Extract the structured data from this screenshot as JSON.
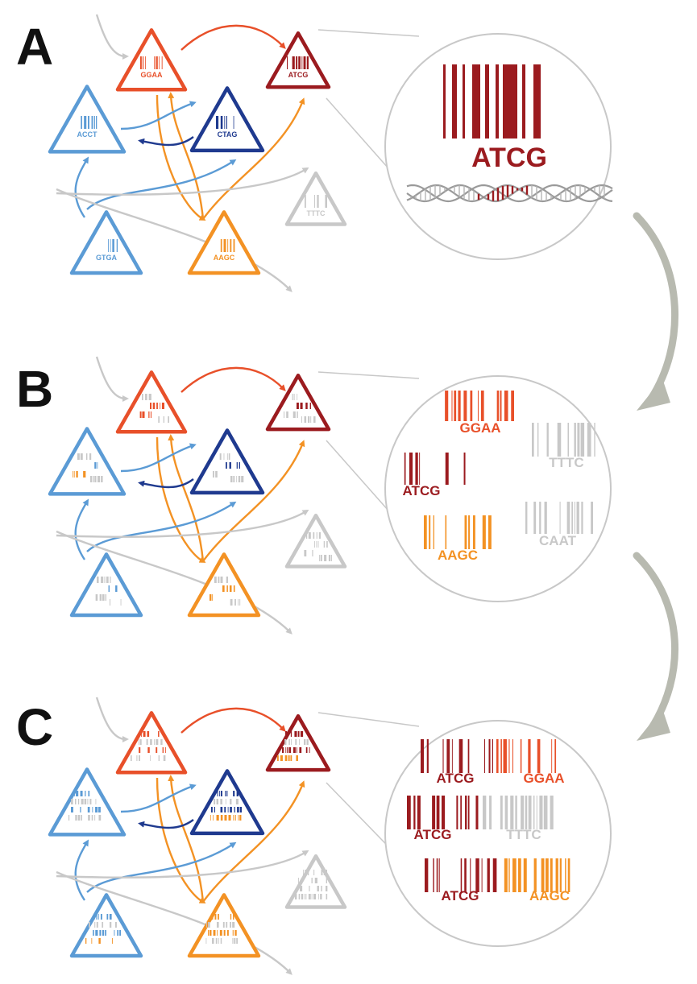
{
  "colors": {
    "red": "#e8502a",
    "darkred": "#9b1b1f",
    "blue": "#5b9bd5",
    "navy": "#1f3a8f",
    "orange": "#f39224",
    "gray": "#c8c8c8",
    "arrow": "#b8bab0"
  },
  "panels": [
    {
      "letter": "A"
    },
    {
      "letter": "B"
    },
    {
      "letter": "C"
    }
  ],
  "nodes": [
    {
      "id": "red",
      "label": "GGAA",
      "color": "red"
    },
    {
      "id": "darkred",
      "label": "ATCG",
      "color": "darkred"
    },
    {
      "id": "blue",
      "label": "ACCT",
      "color": "blue"
    },
    {
      "id": "navy",
      "label": "CTAG",
      "color": "navy"
    },
    {
      "id": "gray",
      "label": "TTTC",
      "color": "gray"
    },
    {
      "id": "blue2",
      "label": "GTGA",
      "color": "blue"
    },
    {
      "id": "orange",
      "label": "AAGC",
      "color": "orange"
    }
  ],
  "zoom_a": {
    "label": "ATCG"
  },
  "zoom_b": {
    "items": [
      {
        "label": "GGAA",
        "color": "red"
      },
      {
        "label": "TTTC",
        "color": "gray"
      },
      {
        "label": "ATCG",
        "color": "darkred"
      },
      {
        "label": "CAAT",
        "color": "gray"
      },
      {
        "label": "AAGC",
        "color": "orange"
      }
    ]
  },
  "zoom_c": {
    "rows": [
      {
        "labels": [
          "ATCG",
          "GGAA"
        ],
        "colors": [
          "darkred",
          "red"
        ]
      },
      {
        "labels": [
          "ATCG",
          "TTTC"
        ],
        "colors": [
          "darkred",
          "gray"
        ]
      },
      {
        "labels": [
          "ATCG",
          "AAGC"
        ],
        "colors": [
          "darkred",
          "orange"
        ]
      }
    ]
  }
}
